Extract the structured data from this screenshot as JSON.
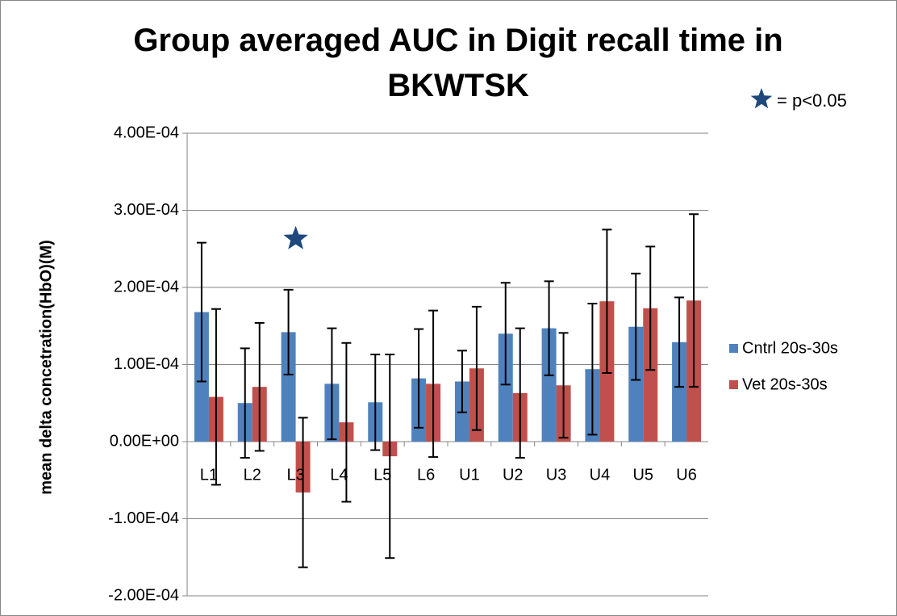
{
  "chart_data": {
    "type": "bar",
    "title": "Group averaged AUC in Digit recall time in BKWTSK",
    "y_label": "mean delta concetration(HbO)(M)",
    "categories": [
      "L1",
      "L2",
      "L3",
      "L4",
      "L5",
      "L6",
      "U1",
      "U2",
      "U3",
      "U4",
      "U5",
      "U6"
    ],
    "series": [
      {
        "name": "Cntrl 20s-30s",
        "color": "#4f81bd",
        "values": [
          0.000168,
          5e-05,
          0.000142,
          7.5e-05,
          5.1e-05,
          8.2e-05,
          7.8e-05,
          0.00014,
          0.000147,
          9.4e-05,
          0.000149,
          0.000129
        ],
        "errors": [
          9e-05,
          7.1e-05,
          5.5e-05,
          7.2e-05,
          6.2e-05,
          6.4e-05,
          4e-05,
          6.6e-05,
          6.1e-05,
          8.5e-05,
          6.9e-05,
          5.8e-05
        ]
      },
      {
        "name": "Vet 20s-30s",
        "color": "#c0504d",
        "values": [
          5.8e-05,
          7.1e-05,
          -6.6e-05,
          2.5e-05,
          -1.9e-05,
          7.5e-05,
          9.5e-05,
          6.3e-05,
          7.3e-05,
          0.000182,
          0.000173,
          0.000183
        ],
        "errors": [
          0.000114,
          8.3e-05,
          9.7e-05,
          0.000103,
          0.000132,
          9.5e-05,
          8e-05,
          8.4e-05,
          6.8e-05,
          9.3e-05,
          8e-05,
          0.000112
        ]
      }
    ],
    "ylim": [
      -0.0002,
      0.0004
    ],
    "yticks": [
      {
        "value": -0.0002,
        "label": "-2.00E-04"
      },
      {
        "value": -0.0001,
        "label": "-1.00E-04"
      },
      {
        "value": 0,
        "label": "0.00E+00"
      },
      {
        "value": 0.0001,
        "label": "1.00E-04"
      },
      {
        "value": 0.0002,
        "label": "2.00E-04"
      },
      {
        "value": 0.0003,
        "label": "3.00E-04"
      },
      {
        "value": 0.0004,
        "label": "4.00E-04"
      }
    ],
    "grid": true,
    "legend": "right",
    "significance": {
      "label": "= p<0.05",
      "categories": [
        "L3"
      ],
      "color": "#1f497d"
    }
  }
}
